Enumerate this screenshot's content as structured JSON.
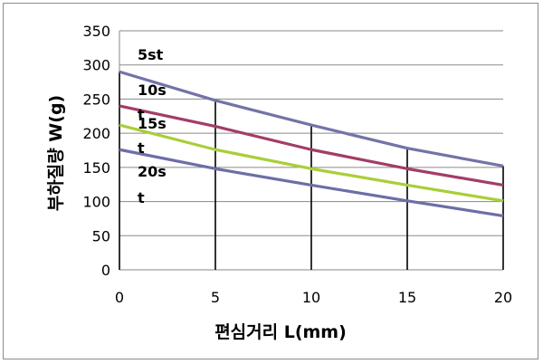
{
  "chart_data": {
    "type": "line",
    "xlabel": "편심거리 L(mm)",
    "ylabel": "부하질량 W(g)",
    "xlim": [
      0,
      20
    ],
    "ylim": [
      0,
      350
    ],
    "x_ticks": [
      0,
      5,
      10,
      15,
      20
    ],
    "y_ticks": [
      0,
      50,
      100,
      150,
      200,
      250,
      300,
      350
    ],
    "grid": "horizontal gridlines; vertical drop lines at x ticks",
    "x": [
      0,
      5,
      10,
      15,
      20
    ],
    "series": [
      {
        "name": "5st",
        "values": [
          290,
          248,
          212,
          178,
          152
        ],
        "color": "#7373a8"
      },
      {
        "name": "10st",
        "values": [
          240,
          210,
          176,
          148,
          124
        ],
        "color": "#a23d66"
      },
      {
        "name": "15st",
        "values": [
          212,
          176,
          148,
          124,
          101
        ],
        "color": "#a8cf38"
      },
      {
        "name": "20st",
        "values": [
          176,
          148,
          124,
          101,
          79
        ],
        "color": "#6d6ea6"
      }
    ],
    "series_labels": [
      {
        "line1": "5st",
        "line2": ""
      },
      {
        "line1": "10s",
        "line2": "t"
      },
      {
        "line1": "15s",
        "line2": "t"
      },
      {
        "line1": "20s",
        "line2": "t"
      }
    ]
  }
}
